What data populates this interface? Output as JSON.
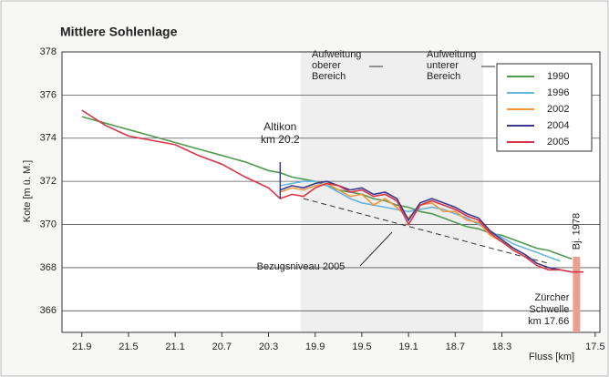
{
  "chart_data": {
    "type": "line",
    "title": "Mittlere Sohlenlage",
    "ylabel": "Kote [m ü. M.]",
    "xlabel": "Fluss [km]",
    "x": [
      21.9,
      21.7,
      21.5,
      21.3,
      21.1,
      20.9,
      20.7,
      20.5,
      20.3,
      20.2,
      20.1,
      20.0,
      19.9,
      19.8,
      19.7,
      19.6,
      19.5,
      19.4,
      19.3,
      19.2,
      19.1,
      19.0,
      18.9,
      18.8,
      18.7,
      18.6,
      18.5,
      18.4,
      18.3,
      18.2,
      18.1,
      18.0,
      17.9,
      17.8,
      17.7,
      17.6
    ],
    "series": [
      {
        "name": "1990",
        "color": "#4f9a4f",
        "values": [
          375.0,
          374.7,
          374.4,
          374.1,
          373.8,
          373.5,
          373.2,
          372.9,
          372.5,
          372.4,
          372.2,
          372.1,
          372.0,
          371.8,
          371.6,
          371.5,
          371.4,
          371.2,
          371.1,
          370.9,
          370.8,
          370.6,
          370.5,
          370.3,
          370.1,
          369.9,
          369.8,
          369.6,
          369.5,
          369.3,
          369.1,
          368.9,
          368.8,
          368.6,
          368.4,
          null
        ]
      },
      {
        "name": "1996",
        "color": "#6ab4de",
        "values": [
          null,
          null,
          null,
          null,
          null,
          null,
          null,
          null,
          null,
          371.8,
          371.9,
          372.0,
          372.0,
          371.8,
          371.5,
          371.2,
          371.0,
          370.9,
          370.8,
          370.7,
          370.6,
          370.7,
          370.8,
          370.7,
          370.5,
          370.3,
          370.0,
          369.7,
          369.4,
          369.1,
          368.9,
          368.7,
          368.5,
          368.3,
          null,
          null
        ]
      },
      {
        "name": "2002",
        "color": "#f0963c",
        "values": [
          null,
          null,
          null,
          null,
          null,
          null,
          null,
          null,
          null,
          371.5,
          371.7,
          371.6,
          371.8,
          371.9,
          371.6,
          371.3,
          371.4,
          370.9,
          371.2,
          370.8,
          370.3,
          370.9,
          371.0,
          370.6,
          370.6,
          370.2,
          370.1,
          369.5,
          369.2,
          368.9,
          368.6,
          368.2,
          368.0,
          367.9,
          null,
          null
        ]
      },
      {
        "name": "2004",
        "color": "#3a3a8c",
        "values": [
          null,
          null,
          null,
          null,
          null,
          null,
          null,
          null,
          null,
          371.6,
          371.8,
          371.7,
          371.9,
          372.0,
          371.8,
          371.6,
          371.7,
          371.4,
          371.5,
          371.2,
          370.2,
          371.0,
          371.2,
          371.0,
          370.8,
          370.5,
          370.3,
          369.7,
          369.3,
          368.9,
          368.6,
          368.2,
          368.0,
          367.9,
          null,
          null
        ]
      },
      {
        "name": "2005",
        "color": "#d9344a",
        "values": [
          375.3,
          374.6,
          374.1,
          373.9,
          373.7,
          373.2,
          372.8,
          372.2,
          371.7,
          371.2,
          371.4,
          371.3,
          371.7,
          371.9,
          371.8,
          371.5,
          371.6,
          371.3,
          371.4,
          371.1,
          370.0,
          370.9,
          371.1,
          370.9,
          370.7,
          370.4,
          370.2,
          369.6,
          369.2,
          368.8,
          368.5,
          368.1,
          367.9,
          367.9,
          367.8,
          367.8
        ]
      }
    ],
    "xlim": [
      22.07,
      17.46
    ],
    "ylim": [
      365,
      378
    ],
    "xticks": [
      21.9,
      21.5,
      21.1,
      20.7,
      20.3,
      19.9,
      19.5,
      19.1,
      18.7,
      18.3,
      17.5
    ],
    "yticks": [
      366,
      368,
      370,
      372,
      374,
      376,
      378
    ],
    "grid": true,
    "legend": "upper right",
    "reference": {
      "label": "Bezugsniveau 2005",
      "x": [
        20.0,
        17.9
      ],
      "y": [
        371.2,
        368.2
      ]
    },
    "altikon": {
      "lines": [
        "Altikon",
        "km 20.2"
      ],
      "x": 20.2
    },
    "aufweitung": [
      [
        "Aufweitung",
        "oberer",
        "Bereich"
      ],
      [
        "Aufweitung",
        "unterer",
        "Bereich"
      ]
    ],
    "weir": {
      "x": 17.66,
      "top": 368.5,
      "label": "Bj. 1978",
      "lines": [
        "Zürcher",
        "Schwelle",
        "km 17.66"
      ]
    }
  }
}
